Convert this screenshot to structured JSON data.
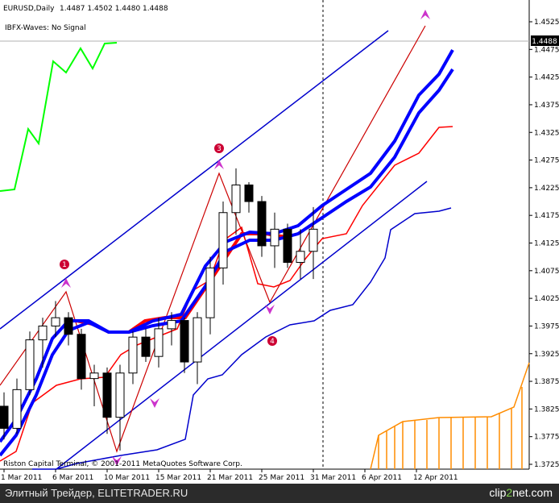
{
  "header": {
    "symbol": "EURUSD,Daily",
    "ohlc": "1.4487 1.4502 1.4480 1.4488",
    "indicator": "IBFX-Waves: No Signal"
  },
  "copyright": "Riston Capital Terminal, © 2001-2011 MetaQuotes Software Corp.",
  "footer": {
    "left": "Элитный Трейдер, ELITETRADER.RU",
    "right_a": "clip",
    "right_b": "2",
    "right_c": "net.com"
  },
  "colors": {
    "bull": "#ffffff",
    "bear": "#000000",
    "ma": "#0000ff",
    "kijun": "#ff0000",
    "zigzag": "#cc0000",
    "green": "#00ff00",
    "cloud": "#ff8c00",
    "arrow": "#cc33cc",
    "channel": "#0000cc"
  },
  "chart_data": {
    "type": "candlestick",
    "ylim": [
      1.3715,
      1.4545
    ],
    "price_ticks": [
      "1.4525",
      "1.4475",
      "1.4425",
      "1.4375",
      "1.4325",
      "1.4275",
      "1.4225",
      "1.4175",
      "1.4125",
      "1.4075",
      "1.4025",
      "1.3975",
      "1.3925",
      "1.3875",
      "1.3825",
      "1.3775",
      "1.3725"
    ],
    "current_price": "1.4488",
    "date_ticks": [
      {
        "i": 0,
        "label": "1 Mar 2011"
      },
      {
        "i": 4,
        "label": "6 Mar 2011"
      },
      {
        "i": 8,
        "label": "10 Mar 2011"
      },
      {
        "i": 12,
        "label": "15 Mar 2011"
      },
      {
        "i": 16,
        "label": "21 Mar 2011"
      },
      {
        "i": 20,
        "label": "25 Mar 2011"
      },
      {
        "i": 24,
        "label": "31 Mar 2011"
      },
      {
        "i": 28,
        "label": "6 Apr 2011"
      },
      {
        "i": 32,
        "label": "12 Apr 2011"
      }
    ],
    "candles": [
      [
        1.383,
        1.3855,
        1.377,
        1.379
      ],
      [
        1.379,
        1.388,
        1.378,
        1.386
      ],
      [
        1.386,
        1.3965,
        1.385,
        1.395
      ],
      [
        1.395,
        1.399,
        1.39,
        1.3975
      ],
      [
        1.3975,
        1.402,
        1.3955,
        1.399
      ],
      [
        1.399,
        1.4,
        1.394,
        1.396
      ],
      [
        1.396,
        1.397,
        1.386,
        1.388
      ],
      [
        1.388,
        1.3905,
        1.383,
        1.389
      ],
      [
        1.389,
        1.39,
        1.378,
        1.381
      ],
      [
        1.381,
        1.3905,
        1.375,
        1.389
      ],
      [
        1.389,
        1.3965,
        1.387,
        1.3955
      ],
      [
        1.3955,
        1.397,
        1.391,
        1.392
      ],
      [
        1.392,
        1.399,
        1.39,
        1.397
      ],
      [
        1.397,
        1.4,
        1.394,
        1.3985
      ],
      [
        1.3985,
        1.399,
        1.389,
        1.391
      ],
      [
        1.391,
        1.4,
        1.387,
        1.399
      ],
      [
        1.399,
        1.41,
        1.396,
        1.408
      ],
      [
        1.408,
        1.42,
        1.405,
        1.418
      ],
      [
        1.418,
        1.426,
        1.414,
        1.423
      ],
      [
        1.423,
        1.4235,
        1.418,
        1.42
      ],
      [
        1.42,
        1.421,
        1.41,
        1.412
      ],
      [
        1.412,
        1.418,
        1.408,
        1.415
      ],
      [
        1.415,
        1.416,
        1.408,
        1.409
      ],
      [
        1.409,
        1.415,
        1.406,
        1.411
      ],
      [
        1.411,
        1.419,
        1.406,
        1.415
      ]
    ]
  }
}
